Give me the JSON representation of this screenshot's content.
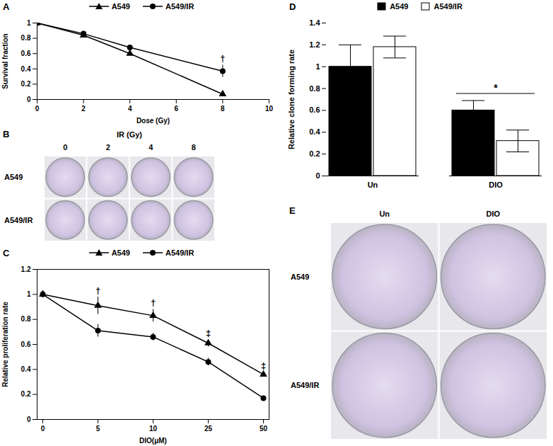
{
  "chart_data": [
    {
      "type": "line",
      "title": "A",
      "x_label": "Dose (Gy)",
      "y_label": "Survival fraction",
      "x": [
        0,
        2,
        4,
        8
      ],
      "xlim": [
        0,
        10
      ],
      "xticks": [
        0,
        2,
        4,
        6,
        8,
        10
      ],
      "ylim": [
        0,
        1
      ],
      "yticks": [
        0,
        0.2,
        0.4,
        0.6,
        0.8,
        1
      ],
      "legend": "top",
      "series": [
        {
          "name": "A549",
          "color": "#000000",
          "marker": "triangle",
          "values": [
            1,
            0.84,
            0.6,
            0.07
          ],
          "errors": [
            0,
            0.01,
            0.02,
            0.01
          ]
        },
        {
          "name": "A549/IR",
          "color": "#000000",
          "marker": "circle",
          "values": [
            1,
            0.86,
            0.68,
            0.37
          ],
          "errors": [
            0,
            0.01,
            0.03,
            0.08
          ]
        }
      ],
      "annotations": [
        {
          "x": 8,
          "text": "†"
        }
      ]
    },
    {
      "type": "image_grid",
      "title": "B",
      "column_title": "IR (Gy)",
      "columns": [
        "0",
        "2",
        "4",
        "8"
      ],
      "rows": [
        "A549",
        "A549/IR"
      ]
    },
    {
      "type": "line",
      "title": "C",
      "x_label": "DIO(μM)",
      "y_label": "Relative proliferation rate",
      "categories": [
        "0",
        "5",
        "10",
        "25",
        "50"
      ],
      "ylim": [
        0,
        1.2
      ],
      "yticks": [
        0,
        0.2,
        0.4,
        0.6,
        0.8,
        1,
        1.2
      ],
      "legend": "top",
      "series": [
        {
          "name": "A549",
          "color": "#000000",
          "marker": "triangle",
          "values": [
            1,
            0.91,
            0.83,
            0.61,
            0.36
          ],
          "errors": [
            0,
            0.07,
            0.05,
            0.03,
            0.02
          ]
        },
        {
          "name": "A549/IR",
          "color": "#000000",
          "marker": "circle",
          "values": [
            1,
            0.71,
            0.66,
            0.46,
            0.17
          ],
          "errors": [
            0,
            0.05,
            0.03,
            0.03,
            0.01
          ]
        }
      ],
      "annotations": [
        {
          "x": "5",
          "text": "†"
        },
        {
          "x": "10",
          "text": "†"
        },
        {
          "x": "25",
          "text": "‡"
        },
        {
          "x": "50",
          "text": "‡"
        }
      ]
    },
    {
      "type": "bar",
      "title": "D",
      "y_label": "Relative clone forming rate",
      "categories": [
        "Un",
        "DIO"
      ],
      "ylim": [
        0,
        1.4
      ],
      "yticks": [
        0,
        0.2,
        0.4,
        0.6,
        0.8,
        1,
        1.2,
        1.4
      ],
      "legend": "top",
      "series": [
        {
          "name": "A549",
          "color": "#000000",
          "values": [
            1,
            0.6
          ],
          "errors": [
            0.2,
            0.09
          ]
        },
        {
          "name": "A549/IR",
          "color": "#ffffff",
          "values": [
            1.18,
            0.32
          ],
          "errors": [
            0.1,
            0.1
          ]
        }
      ],
      "annotations": [
        {
          "category": "DIO",
          "text": "*"
        }
      ]
    },
    {
      "type": "image_grid",
      "title": "E",
      "columns": [
        "Un",
        "DIO"
      ],
      "rows": [
        "A549",
        "A549/IR"
      ]
    }
  ]
}
